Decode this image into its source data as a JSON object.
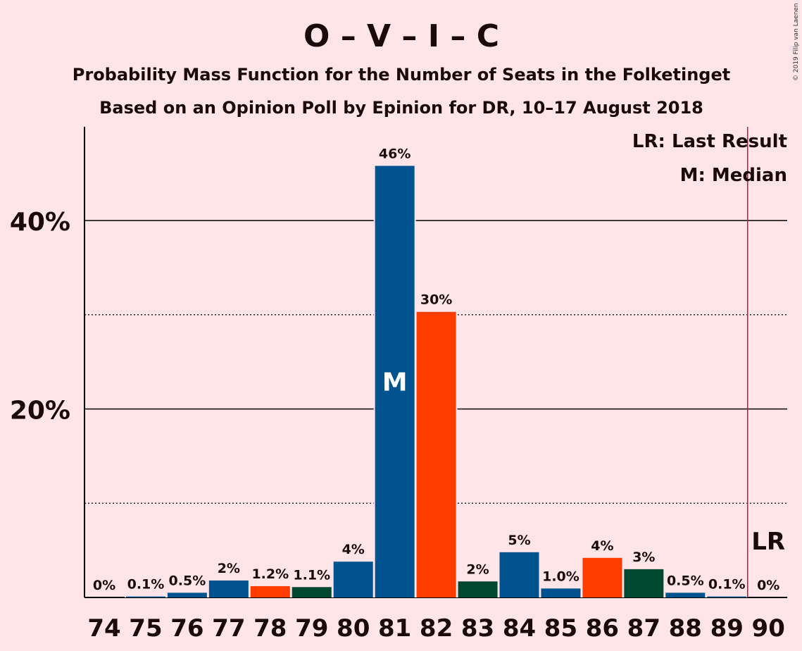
{
  "chart_data": {
    "type": "bar",
    "title": "O – V – I – C",
    "subtitle": "Probability Mass Function for the Number of Seats in the Folketinget",
    "subtitle2": "Based on an Opinion Poll by Epinion for DR, 10–17 August 2018",
    "credit": "© 2019 Filip van Laenen",
    "legend": [
      "LR: Last Result",
      "M: Median"
    ],
    "legend_position": "top-right",
    "ylim": [
      0,
      50
    ],
    "yticks": [
      {
        "value": 20,
        "label": "20%"
      },
      {
        "value": 40,
        "label": "40%"
      }
    ],
    "minor_grid": [
      10,
      30
    ],
    "categories": [
      "74",
      "75",
      "76",
      "77",
      "78",
      "79",
      "80",
      "81",
      "82",
      "83",
      "84",
      "85",
      "86",
      "87",
      "88",
      "89",
      "90"
    ],
    "values": [
      0,
      0.1,
      0.5,
      2,
      1.2,
      1.1,
      4,
      46,
      30,
      2,
      5,
      1.0,
      4,
      3,
      0.5,
      0.1,
      0
    ],
    "heights": [
      0,
      0.1,
      0.5,
      1.8,
      1.2,
      1.1,
      3.8,
      45.8,
      30.3,
      1.7,
      4.8,
      0.95,
      4.2,
      3.0,
      0.5,
      0.1,
      0
    ],
    "labels": [
      "0%",
      "0.1%",
      "0.5%",
      "2%",
      "1.2%",
      "1.1%",
      "4%",
      "46%",
      "30%",
      "2%",
      "5%",
      "1.0%",
      "4%",
      "3%",
      "0.5%",
      "0.1%",
      "0%"
    ],
    "colors": [
      "#00538F",
      "#00538F",
      "#00538F",
      "#00538F",
      "#FF3C00",
      "#004830",
      "#00538F",
      "#00538F",
      "#FF3C00",
      "#004830",
      "#00538F",
      "#00538F",
      "#FF3C00",
      "#004830",
      "#00538F",
      "#00538F",
      "#00538F"
    ],
    "median_index": 7,
    "median_label": "M",
    "last_result_index": 16,
    "last_result_label": "LR",
    "lr_color": "#C0183A"
  }
}
